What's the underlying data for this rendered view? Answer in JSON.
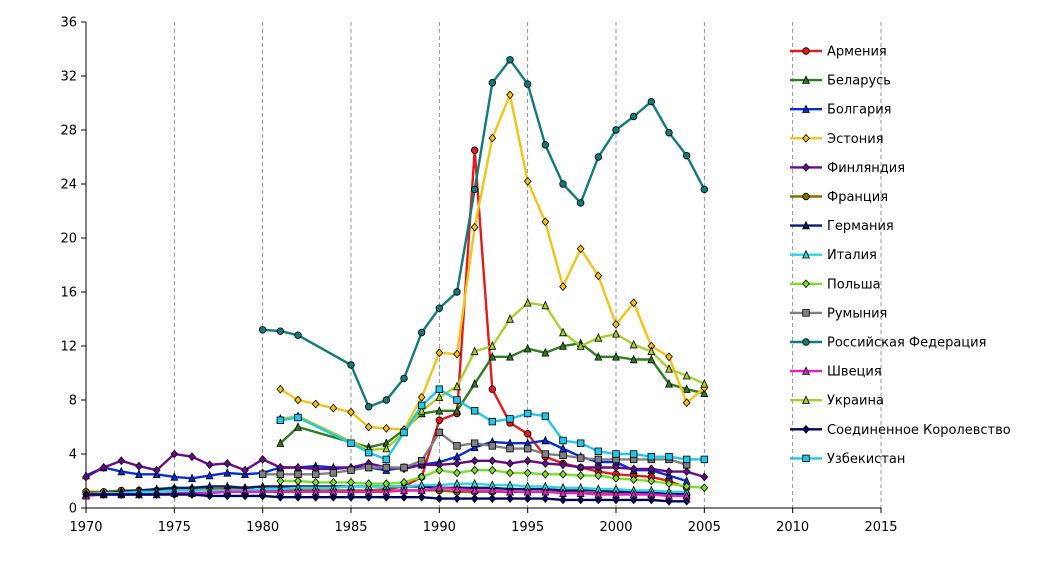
{
  "chart_data": {
    "type": "line",
    "title": "",
    "xlabel": "",
    "ylabel": "",
    "xlim": [
      1970,
      2015
    ],
    "ylim": [
      0,
      36
    ],
    "x_ticks": [
      1970,
      1975,
      1980,
      1985,
      1990,
      1995,
      2000,
      2005,
      2010,
      2015
    ],
    "y_ticks": [
      0,
      4,
      8,
      12,
      16,
      20,
      24,
      28,
      32,
      36
    ],
    "grid": {
      "vertical": true,
      "horizontal": false,
      "style": "dashed"
    },
    "legend": "right",
    "series": [
      {
        "name": "Армения",
        "color": "#e31a1c",
        "marker": "circle",
        "x": [
          1981,
          1982,
          1983,
          1984,
          1985,
          1986,
          1987,
          1988,
          1989,
          1990,
          1991,
          1992,
          1993,
          1994,
          1995,
          1996,
          1997,
          1998,
          1999,
          2000,
          2001,
          2002,
          2003,
          2004
        ],
        "y": [
          1.2,
          1.3,
          1.3,
          1.2,
          1.2,
          1.3,
          1.4,
          1.6,
          2.3,
          6.5,
          7.0,
          26.5,
          8.8,
          6.3,
          5.5,
          3.8,
          3.3,
          3.0,
          2.7,
          2.5,
          2.4,
          2.3,
          2.0,
          1.5
        ]
      },
      {
        "name": "Беларусь",
        "color": "#2e7d1f",
        "marker": "triangle",
        "x": [
          1981,
          1982,
          1986,
          1987,
          1988,
          1989,
          1990,
          1991,
          1992,
          1993,
          1994,
          1995,
          1996,
          1997,
          1998,
          1999,
          2000,
          2001,
          2002,
          2003,
          2004,
          2005
        ],
        "y": [
          4.8,
          6.0,
          4.5,
          4.8,
          5.8,
          7.0,
          7.2,
          7.2,
          9.2,
          11.2,
          11.2,
          11.8,
          11.5,
          12.0,
          12.2,
          11.2,
          11.2,
          11.0,
          11.0,
          9.2,
          8.8,
          8.5
        ]
      },
      {
        "name": "Болгария",
        "color": "#0a2bd8",
        "marker": "triangle",
        "x": [
          1970,
          1971,
          1972,
          1973,
          1974,
          1975,
          1976,
          1977,
          1978,
          1979,
          1980,
          1981,
          1982,
          1983,
          1984,
          1985,
          1986,
          1987,
          1988,
          1989,
          1990,
          1991,
          1992,
          1993,
          1994,
          1995,
          1996,
          1997,
          1998,
          1999,
          2000,
          2001,
          2002,
          2003,
          2004
        ],
        "y": [
          2.4,
          3.0,
          2.7,
          2.5,
          2.5,
          2.3,
          2.2,
          2.4,
          2.6,
          2.5,
          2.6,
          3.0,
          3.0,
          3.1,
          3.0,
          3.0,
          3.0,
          2.8,
          3.0,
          3.2,
          3.4,
          3.8,
          4.5,
          4.9,
          4.8,
          4.8,
          5.0,
          4.4,
          3.8,
          3.4,
          3.4,
          2.8,
          2.8,
          2.4,
          2.0
        ]
      },
      {
        "name": "Эстония",
        "color": "#f2c418",
        "marker": "diamond",
        "x": [
          1981,
          1982,
          1983,
          1984,
          1985,
          1986,
          1987,
          1988,
          1989,
          1990,
          1991,
          1992,
          1993,
          1994,
          1995,
          1996,
          1997,
          1998,
          1999,
          2000,
          2001,
          2002,
          2003,
          2004,
          2005
        ],
        "y": [
          8.8,
          8.0,
          7.7,
          7.4,
          7.1,
          6.0,
          5.9,
          5.8,
          8.2,
          11.5,
          11.4,
          20.8,
          27.4,
          30.6,
          24.2,
          21.2,
          16.4,
          19.2,
          17.2,
          13.6,
          15.2,
          12.0,
          11.2,
          7.8,
          8.9
        ]
      },
      {
        "name": "Финляндия",
        "color": "#6a0a8a",
        "marker": "diamond",
        "x": [
          1970,
          1971,
          1972,
          1973,
          1974,
          1975,
          1976,
          1977,
          1978,
          1979,
          1980,
          1981,
          1982,
          1983,
          1984,
          1985,
          1986,
          1987,
          1988,
          1989,
          1990,
          1991,
          1992,
          1993,
          1994,
          1995,
          1996,
          1997,
          1998,
          1999,
          2000,
          2001,
          2002,
          2003,
          2004,
          2005
        ],
        "y": [
          2.3,
          3.0,
          3.5,
          3.1,
          2.8,
          4.0,
          3.8,
          3.2,
          3.3,
          2.8,
          3.6,
          3.0,
          3.0,
          2.9,
          2.9,
          3.0,
          3.3,
          3.0,
          2.9,
          3.2,
          3.2,
          3.3,
          3.5,
          3.5,
          3.3,
          3.5,
          3.3,
          3.2,
          3.0,
          3.0,
          3.0,
          2.9,
          2.9,
          2.7,
          2.7,
          2.3
        ]
      },
      {
        "name": "Франция",
        "color": "#8a6d00",
        "marker": "circle",
        "x": [
          1970,
          1971,
          1972,
          1973,
          1974,
          1975,
          1976,
          1977,
          1978,
          1979,
          1980,
          1981,
          1982,
          1983,
          1984,
          1985,
          1986,
          1987,
          1988,
          1989,
          1990,
          1991,
          1992,
          1993,
          1994,
          1995,
          1996,
          1997,
          1998,
          1999,
          2000,
          2001,
          2002,
          2003,
          2004
        ],
        "y": [
          1.2,
          1.2,
          1.3,
          1.3,
          1.3,
          1.4,
          1.4,
          1.4,
          1.4,
          1.4,
          1.3,
          1.3,
          1.3,
          1.3,
          1.3,
          1.3,
          1.3,
          1.3,
          1.3,
          1.3,
          1.3,
          1.2,
          1.2,
          1.2,
          1.2,
          1.2,
          1.2,
          1.2,
          1.1,
          1.1,
          1.1,
          1.1,
          1.1,
          1.1,
          1.0
        ]
      },
      {
        "name": "Германия",
        "color": "#0a1a6e",
        "marker": "triangle",
        "x": [
          1970,
          1971,
          1972,
          1973,
          1974,
          1975,
          1976,
          1977,
          1978,
          1979,
          1980,
          1981,
          1982,
          1983,
          1984,
          1985,
          1986,
          1987,
          1988,
          1989,
          1990,
          1991,
          1992,
          1993,
          1994,
          1995,
          1996,
          1997,
          1998,
          1999,
          2000,
          2001,
          2002,
          2003,
          2004
        ],
        "y": [
          1.0,
          1.1,
          1.2,
          1.3,
          1.4,
          1.5,
          1.5,
          1.6,
          1.6,
          1.5,
          1.6,
          1.6,
          1.6,
          1.6,
          1.6,
          1.6,
          1.6,
          1.6,
          1.6,
          1.6,
          1.5,
          1.5,
          1.5,
          1.5,
          1.4,
          1.4,
          1.4,
          1.3,
          1.3,
          1.3,
          1.2,
          1.2,
          1.1,
          1.1,
          1.0
        ]
      },
      {
        "name": "Италия",
        "color": "#2fd6e0",
        "marker": "triangle",
        "x": [
          1970,
          1971,
          1972,
          1973,
          1974,
          1975,
          1976,
          1977,
          1978,
          1979,
          1980,
          1981,
          1982,
          1983,
          1984,
          1985,
          1986,
          1987,
          1988,
          1989,
          1990,
          1991,
          1992,
          1993,
          1994,
          1995,
          1996,
          1997,
          1998,
          1999,
          2000,
          2001,
          2002,
          2003,
          2004
        ],
        "y": [
          1.0,
          1.1,
          1.1,
          1.2,
          1.2,
          1.3,
          1.3,
          1.3,
          1.3,
          1.3,
          1.4,
          1.4,
          1.5,
          1.5,
          1.5,
          1.6,
          1.6,
          1.6,
          1.6,
          1.7,
          1.7,
          1.8,
          1.8,
          1.7,
          1.7,
          1.6,
          1.6,
          1.5,
          1.5,
          1.4,
          1.4,
          1.3,
          1.3,
          1.2,
          1.2
        ]
      },
      {
        "name": "Польша",
        "color": "#7be02a",
        "marker": "diamond",
        "x": [
          1981,
          1982,
          1983,
          1984,
          1985,
          1986,
          1987,
          1988,
          1989,
          1990,
          1991,
          1992,
          1993,
          1994,
          1995,
          1996,
          1997,
          1998,
          1999,
          2000,
          2001,
          2002,
          2003,
          2004,
          2005
        ],
        "y": [
          2.0,
          2.0,
          1.9,
          1.9,
          1.9,
          1.8,
          1.8,
          1.9,
          2.3,
          2.8,
          2.6,
          2.8,
          2.8,
          2.6,
          2.6,
          2.5,
          2.5,
          2.4,
          2.4,
          2.2,
          2.1,
          2.0,
          1.8,
          1.6,
          1.5
        ]
      },
      {
        "name": "Румыния",
        "color": "#808080",
        "marker": "square",
        "x": [
          1980,
          1981,
          1982,
          1983,
          1984,
          1985,
          1986,
          1987,
          1988,
          1989,
          1990,
          1991,
          1992,
          1993,
          1994,
          1995,
          1996,
          1997,
          1998,
          1999,
          2000,
          2001,
          2002,
          2003,
          2004
        ],
        "y": [
          2.5,
          2.5,
          2.5,
          2.5,
          2.6,
          2.8,
          3.0,
          3.0,
          3.0,
          3.5,
          5.6,
          4.6,
          4.8,
          4.6,
          4.4,
          4.4,
          4.0,
          3.9,
          3.7,
          3.6,
          3.6,
          3.6,
          3.6,
          3.6,
          3.2
        ]
      },
      {
        "name": "Российская Федерация",
        "color": "#137a7a",
        "marker": "circle",
        "x": [
          1980,
          1981,
          1982,
          1985,
          1986,
          1987,
          1988,
          1989,
          1990,
          1991,
          1992,
          1993,
          1994,
          1995,
          1996,
          1997,
          1998,
          1999,
          2000,
          2001,
          2002,
          2003,
          2004,
          2005
        ],
        "y": [
          13.2,
          13.1,
          12.8,
          10.6,
          7.5,
          8.0,
          9.6,
          13.0,
          14.8,
          16.0,
          23.6,
          31.5,
          33.2,
          31.4,
          26.9,
          24.0,
          22.6,
          26.0,
          28.0,
          29.0,
          30.1,
          27.8,
          26.1,
          23.6
        ]
      },
      {
        "name": "Швеция",
        "color": "#e61ec8",
        "marker": "triangle",
        "x": [
          1970,
          1971,
          1972,
          1973,
          1974,
          1975,
          1976,
          1977,
          1978,
          1979,
          1980,
          1981,
          1982,
          1983,
          1984,
          1985,
          1986,
          1987,
          1988,
          1989,
          1990,
          1991,
          1992,
          1993,
          1994,
          1995,
          1996,
          1997,
          1998,
          1999,
          2000,
          2001,
          2002,
          2003,
          2004
        ],
        "y": [
          0.9,
          1.0,
          1.0,
          1.0,
          1.0,
          1.1,
          1.1,
          1.1,
          1.2,
          1.2,
          1.2,
          1.2,
          1.2,
          1.2,
          1.2,
          1.2,
          1.2,
          1.2,
          1.3,
          1.3,
          1.5,
          1.4,
          1.3,
          1.3,
          1.2,
          1.2,
          1.2,
          1.1,
          1.1,
          1.0,
          1.0,
          1.0,
          1.0,
          0.9,
          0.9
        ]
      },
      {
        "name": "Украина",
        "color": "#a8cf2e",
        "marker": "triangle",
        "x": [
          1981,
          1982,
          1986,
          1987,
          1988,
          1989,
          1990,
          1991,
          1992,
          1993,
          1994,
          1995,
          1996,
          1997,
          1998,
          1999,
          2000,
          2001,
          2002,
          2003,
          2004,
          2005
        ],
        "y": [
          6.6,
          6.8,
          4.3,
          4.4,
          5.6,
          7.2,
          8.2,
          9.0,
          11.6,
          12.0,
          14.0,
          15.2,
          15.0,
          13.0,
          12.0,
          12.6,
          12.9,
          12.1,
          11.6,
          10.3,
          9.8,
          9.2
        ]
      },
      {
        "name": "Соединенное Королевство",
        "color": "#000060",
        "marker": "diamond",
        "x": [
          1970,
          1971,
          1972,
          1973,
          1974,
          1975,
          1976,
          1977,
          1978,
          1979,
          1980,
          1981,
          1982,
          1983,
          1984,
          1985,
          1986,
          1987,
          1988,
          1989,
          1990,
          1991,
          1992,
          1993,
          1994,
          1995,
          1996,
          1997,
          1998,
          1999,
          2000,
          2001,
          2002,
          2003,
          2004
        ],
        "y": [
          1.0,
          1.0,
          1.0,
          1.0,
          1.0,
          1.0,
          1.0,
          0.9,
          0.9,
          0.9,
          0.9,
          0.8,
          0.8,
          0.8,
          0.8,
          0.8,
          0.8,
          0.8,
          0.8,
          0.8,
          0.7,
          0.7,
          0.7,
          0.7,
          0.7,
          0.7,
          0.7,
          0.6,
          0.6,
          0.6,
          0.6,
          0.6,
          0.6,
          0.5,
          0.5
        ]
      },
      {
        "name": "Узбекистан",
        "color": "#22c6e8",
        "marker": "square",
        "x": [
          1981,
          1982,
          1985,
          1986,
          1987,
          1988,
          1989,
          1990,
          1991,
          1992,
          1993,
          1994,
          1995,
          1996,
          1997,
          1998,
          1999,
          2000,
          2001,
          2002,
          2003,
          2004,
          2005
        ],
        "y": [
          6.5,
          6.7,
          4.8,
          4.1,
          3.6,
          5.6,
          7.6,
          8.8,
          8.0,
          7.2,
          6.4,
          6.6,
          7.0,
          6.8,
          5.0,
          4.8,
          4.2,
          4.0,
          4.0,
          3.8,
          3.8,
          3.6,
          3.6
        ]
      }
    ]
  }
}
